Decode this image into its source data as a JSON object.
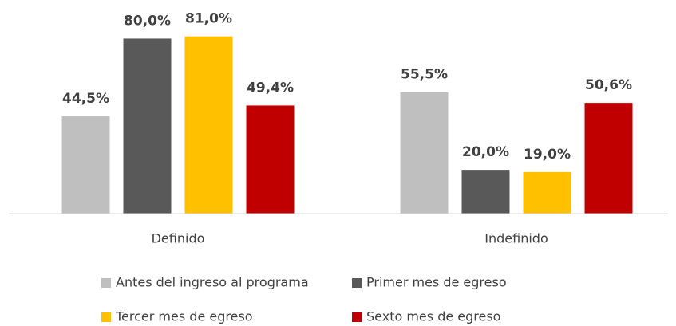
{
  "chart_data": {
    "type": "bar",
    "categories": [
      "Definido",
      "Indefinido"
    ],
    "series": [
      {
        "name": "Antes del ingreso al programa",
        "color": "#bfbfbf",
        "values": [
          44.5,
          55.5
        ],
        "value_labels": [
          "44,5%",
          "55,5%"
        ]
      },
      {
        "name": "Primer mes de egreso",
        "color": "#595959",
        "values": [
          80.0,
          20.0
        ],
        "value_labels": [
          "80,0%",
          "20,0%"
        ]
      },
      {
        "name": "Tercer mes de egreso",
        "color": "#ffc000",
        "values": [
          81.0,
          19.0
        ],
        "value_labels": [
          "81,0%",
          "19,0%"
        ]
      },
      {
        "name": "Sexto mes de egreso",
        "color": "#c00000",
        "values": [
          49.4,
          50.6
        ],
        "value_labels": [
          "49,4%",
          "50,6%"
        ]
      }
    ],
    "ylim": [
      0,
      94
    ],
    "grid": false
  }
}
